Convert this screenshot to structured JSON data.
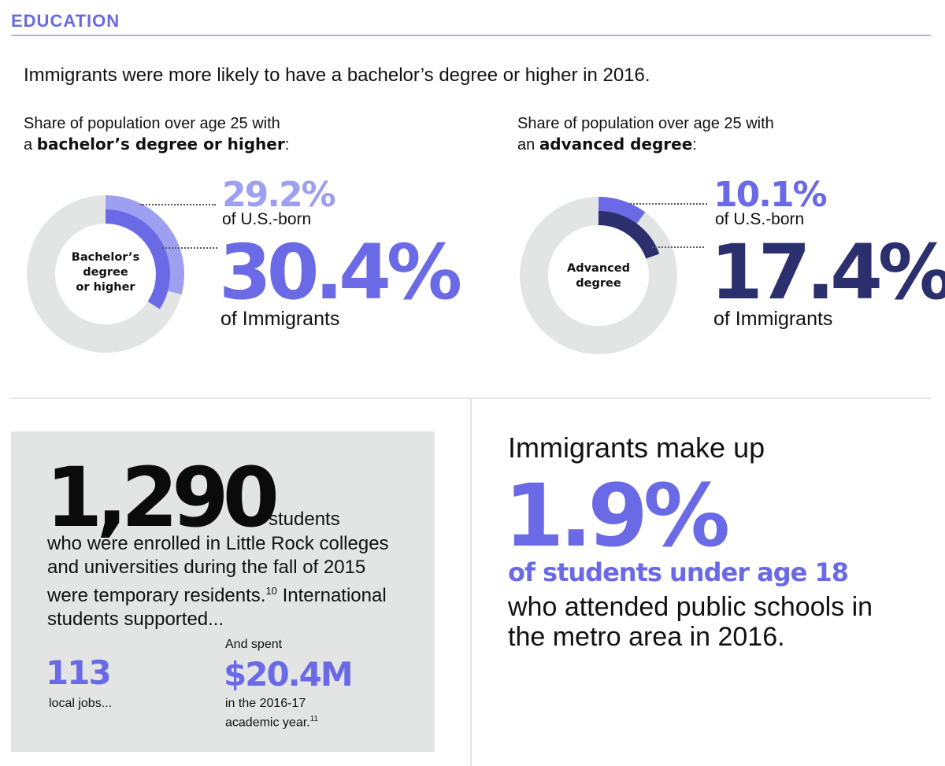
{
  "section": {
    "title": "EDUCATION"
  },
  "headline": "Immigrants were more likely to have a bachelor’s degree or higher in 2016.",
  "colors": {
    "accent": "#6a6ae6",
    "accent_light": "#9d9ff0",
    "dark_navy": "#2c2f6e",
    "track": "#e3e5e4"
  },
  "panels": {
    "bachelors": {
      "subtitle_prefix": "Share of population over age 25 with",
      "subtitle_article": "a",
      "subtitle_bold": "bachelor’s degree or higher",
      "subtitle_suffix": ":",
      "center_label": [
        "Bachelor’s",
        "degree",
        "or higher"
      ],
      "usborn_value": "29.2%",
      "usborn_caption": "of U.S.-born",
      "immigrant_value": "30.4%",
      "immigrant_caption": "of Immigrants"
    },
    "advanced": {
      "subtitle_prefix": "Share of population over age 25 with",
      "subtitle_article": "an",
      "subtitle_bold": "advanced degree",
      "subtitle_suffix": ":",
      "center_label": [
        "Advanced",
        "degree"
      ],
      "usborn_value": "10.1%",
      "usborn_caption": "of U.S.-born",
      "immigrant_value": "17.4%",
      "immigrant_caption": "of Immigrants"
    }
  },
  "chart_data": [
    {
      "type": "pie",
      "categories": [
        "U.S.-born",
        "Immigrants"
      ],
      "values": [
        29.2,
        30.4
      ],
      "units": "%",
      "series_colors": [
        "#9d9ff0",
        "#6a6ae6"
      ]
    },
    {
      "type": "pie",
      "categories": [
        "U.S.-born",
        "Immigrants"
      ],
      "values": [
        10.1,
        17.4
      ],
      "units": "%",
      "series_colors": [
        "#6a6ae6",
        "#2c2f6e"
      ]
    }
  ],
  "students": {
    "count": "1,290",
    "word": "students",
    "line1": "who were enrolled in Little Rock colleges",
    "line2": "and universities during the fall of 2015",
    "line3_a": "were temporary residents.",
    "line3_sup": "10",
    "line3_b": " International",
    "line4": "students supported...",
    "jobs_value": "113",
    "jobs_caption": "local jobs...",
    "spent_intro": "And spent",
    "spent_value": "$20.4M",
    "spent_caption_1": "in the 2016-17",
    "spent_caption_2": "academic year.",
    "spent_sup": "11"
  },
  "public_schools": {
    "intro": "Immigrants make up",
    "value": "1.9%",
    "emphasis": "of students under age 18",
    "rest_1": "who attended public schools in",
    "rest_2": "the metro area in 2016."
  }
}
